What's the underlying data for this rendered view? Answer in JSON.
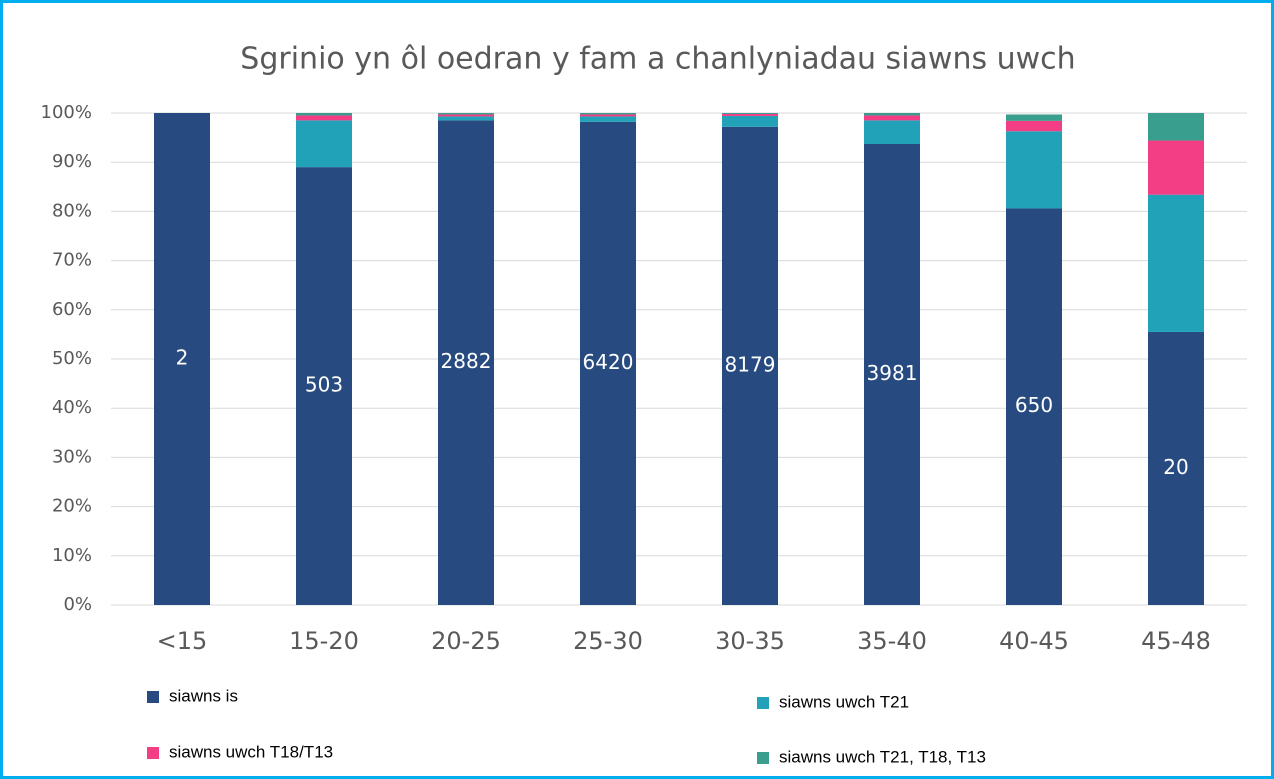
{
  "chart_data": {
    "type": "stacked_bar",
    "title": "Sgrinio yn ôl oedran y fam a chanlyniadau siawns uwch",
    "categories": [
      "<15",
      "15-20",
      "20-25",
      "25-30",
      "30-35",
      "35-40",
      "40-45",
      "45-48"
    ],
    "series": [
      {
        "name": "siawns is",
        "color": "#274b80",
        "values": [
          100,
          89,
          98.5,
          98.2,
          97.2,
          93.7,
          80.6,
          55.5
        ],
        "bar_labels": [
          "2",
          "503",
          "2882",
          "6420",
          "8179",
          "3981",
          "650",
          "20"
        ]
      },
      {
        "name": "siawns uwch T21",
        "color": "#22a2b8",
        "values": [
          0,
          9.5,
          0.8,
          1.1,
          2.2,
          4.8,
          15.7,
          27.9
        ]
      },
      {
        "name": "siawns uwch T18/T13",
        "color": "#f33d84",
        "values": [
          0,
          1,
          0.4,
          0.4,
          0.4,
          1,
          2.1,
          11
        ]
      },
      {
        "name": "siawns uwch T21, T18, T13",
        "color": "#3a9e8e",
        "values": [
          0,
          0.5,
          0.3,
          0.3,
          0.2,
          0.5,
          1.3,
          5.6
        ]
      }
    ],
    "ylim": [
      0,
      100
    ],
    "yticks": [
      {
        "value": 0,
        "label": "0%"
      },
      {
        "value": 10,
        "label": "10%"
      },
      {
        "value": 20,
        "label": "20%"
      },
      {
        "value": 30,
        "label": "30%"
      },
      {
        "value": 40,
        "label": "40%"
      },
      {
        "value": 50,
        "label": "50%"
      },
      {
        "value": 60,
        "label": "60%"
      },
      {
        "value": 70,
        "label": "70%"
      },
      {
        "value": 80,
        "label": "80%"
      },
      {
        "value": 90,
        "label": "90%"
      },
      {
        "value": 100,
        "label": "100%"
      }
    ],
    "grid": true,
    "legend": "bottom"
  }
}
